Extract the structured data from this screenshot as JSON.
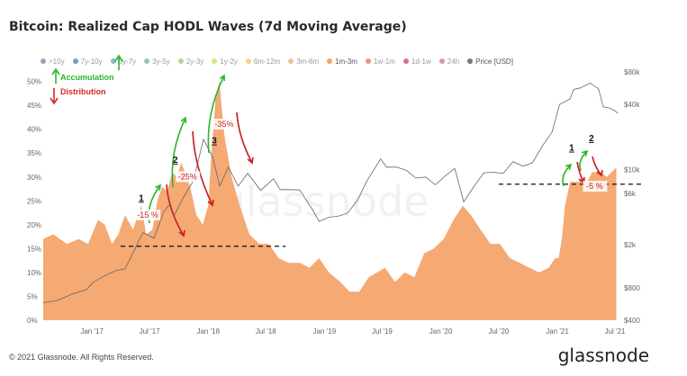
{
  "title": "Bitcoin: Realized Cap HODL Waves (7d Moving Average)",
  "footer": "© 2021 Glassnode. All Rights Reserved.",
  "brand": "glassnode",
  "watermark": "glassnode",
  "legend": [
    {
      "label": ">10y",
      "color": "#6b7a99",
      "active": false
    },
    {
      "label": "7y-10y",
      "color": "#3b6fb6",
      "active": false
    },
    {
      "label": "5y-7y",
      "color": "#4da0b5",
      "active": false
    },
    {
      "label": "3y-5y",
      "color": "#5bb98c",
      "active": false
    },
    {
      "label": "2y-3y",
      "color": "#93c95a",
      "active": false
    },
    {
      "label": "1y-2y",
      "color": "#d7d34a",
      "active": false
    },
    {
      "label": "6m-12m",
      "color": "#eac45a",
      "active": false
    },
    {
      "label": "3m-6m",
      "color": "#eaa95c",
      "active": false
    },
    {
      "label": "1m-3m",
      "color": "#f4a46b",
      "active": true
    },
    {
      "label": "1w-1m",
      "color": "#e06a4e",
      "active": false
    },
    {
      "label": "1d-1w",
      "color": "#c23b4a",
      "active": false
    },
    {
      "label": "24h",
      "color": "#d06a6a",
      "active": false
    },
    {
      "label": "Price [USD]",
      "color": "#777777",
      "active": true
    }
  ],
  "annotations": {
    "accumulation": "Accumulation",
    "distribution": "Distribution",
    "labels": [
      {
        "text": "1",
        "x": "2017-06-05",
        "y": 25
      },
      {
        "text": "2",
        "x": "2017-09-20",
        "y": 33
      },
      {
        "text": "3",
        "x": "2018-01-20",
        "y": 37
      },
      {
        "text": "1",
        "x": "2021-02-15",
        "y": 35.5
      },
      {
        "text": "2",
        "x": "2021-04-18",
        "y": 37.5
      }
    ],
    "pct": [
      {
        "text": "-15 %",
        "x": "2017-06-25",
        "y": 21.5
      },
      {
        "text": "-25%",
        "x": "2017-10-28",
        "y": 29.5
      },
      {
        "text": "-35%",
        "x": "2018-02-20",
        "y": 40.5
      },
      {
        "text": "-5 %",
        "x": "2021-04-28",
        "y": 27.5
      }
    ]
  },
  "chart_data": {
    "type": "area",
    "title": "Bitcoin: Realized Cap HODL Waves (7d Moving Average)",
    "x_ticks": [
      "Jan '17",
      "Jul '17",
      "Jan '18",
      "Jul '18",
      "Jan '19",
      "Jul '19",
      "Jan '20",
      "Jul '20",
      "Jan '21",
      "Jul '21"
    ],
    "x_tick_dates": [
      "2017-01-01",
      "2017-07-01",
      "2018-01-01",
      "2018-07-01",
      "2019-01-01",
      "2019-07-01",
      "2020-01-01",
      "2020-07-01",
      "2021-01-01",
      "2021-07-01"
    ],
    "x_range": [
      "2016-08-01",
      "2021-07-15"
    ],
    "y_left_ticks": [
      "0%",
      "5%",
      "10%",
      "15%",
      "20%",
      "25%",
      "30%",
      "35%",
      "40%",
      "45%",
      "50%"
    ],
    "y_left_range": [
      0,
      52
    ],
    "y_right_ticks": [
      "$400",
      "$800",
      "$2k",
      "$6k",
      "$10k",
      "$40k",
      "$80k"
    ],
    "y_right_tick_values": [
      400,
      800,
      2000,
      6000,
      10000,
      40000,
      80000
    ],
    "y_right_range": [
      400,
      80000
    ],
    "y_right_scale": "log",
    "series": [
      {
        "name": "1m-3m",
        "color": "#f4a46b",
        "x": [
          "2016-08-01",
          "2016-09-01",
          "2016-10-15",
          "2016-11-20",
          "2016-12-20",
          "2017-01-20",
          "2017-02-10",
          "2017-03-05",
          "2017-03-25",
          "2017-04-15",
          "2017-05-10",
          "2017-05-20",
          "2017-06-05",
          "2017-06-20",
          "2017-07-10",
          "2017-07-25",
          "2017-08-10",
          "2017-08-25",
          "2017-09-10",
          "2017-09-25",
          "2017-10-08",
          "2017-10-20",
          "2017-11-05",
          "2017-11-25",
          "2017-12-15",
          "2018-01-01",
          "2018-01-10",
          "2018-01-25",
          "2018-02-05",
          "2018-02-20",
          "2018-03-15",
          "2018-04-10",
          "2018-05-10",
          "2018-06-10",
          "2018-07-10",
          "2018-08-10",
          "2018-09-10",
          "2018-10-15",
          "2018-11-15",
          "2018-12-15",
          "2019-01-15",
          "2019-02-20",
          "2019-03-20",
          "2019-04-20",
          "2019-05-20",
          "2019-06-15",
          "2019-07-10",
          "2019-08-10",
          "2019-09-10",
          "2019-10-10",
          "2019-11-10",
          "2019-12-10",
          "2020-01-10",
          "2020-02-10",
          "2020-03-10",
          "2020-04-05",
          "2020-05-05",
          "2020-06-05",
          "2020-07-05",
          "2020-08-05",
          "2020-09-05",
          "2020-10-05",
          "2020-11-05",
          "2020-12-05",
          "2020-12-25",
          "2021-01-05",
          "2021-01-15",
          "2021-01-25",
          "2021-02-10",
          "2021-02-25",
          "2021-03-10",
          "2021-03-20",
          "2021-04-05",
          "2021-04-20",
          "2021-05-05",
          "2021-05-20",
          "2021-06-05",
          "2021-06-20",
          "2021-07-05"
        ],
        "values": [
          17,
          18,
          16,
          17,
          16,
          21,
          20,
          16,
          18,
          22,
          19,
          21,
          24,
          18,
          19,
          25,
          28,
          27,
          31,
          30,
          33,
          31,
          28,
          22,
          20,
          24,
          34,
          47,
          50,
          39,
          30,
          24,
          18,
          16,
          16,
          13,
          12,
          12,
          11,
          13,
          10,
          8,
          6,
          6,
          9,
          10,
          11,
          8,
          10,
          9,
          14,
          15,
          17,
          21,
          24,
          22,
          19,
          16,
          16,
          13,
          12,
          11,
          10,
          11,
          13,
          13,
          17,
          24,
          29,
          29,
          29,
          30,
          29,
          31,
          31,
          31,
          30,
          31,
          32
        ]
      },
      {
        "name": "Price [USD]",
        "color": "#666666",
        "x": [
          "2016-08-01",
          "2016-09-15",
          "2016-11-01",
          "2016-12-15",
          "2017-01-05",
          "2017-02-15",
          "2017-03-15",
          "2017-04-15",
          "2017-05-15",
          "2017-06-10",
          "2017-07-15",
          "2017-08-15",
          "2017-09-01",
          "2017-09-15",
          "2017-10-15",
          "2017-11-15",
          "2017-12-17",
          "2018-01-15",
          "2018-02-06",
          "2018-03-05",
          "2018-04-05",
          "2018-05-05",
          "2018-06-15",
          "2018-07-25",
          "2018-08-15",
          "2018-09-15",
          "2018-10-15",
          "2018-11-25",
          "2018-12-15",
          "2019-01-15",
          "2019-02-15",
          "2019-03-15",
          "2019-04-15",
          "2019-05-15",
          "2019-06-26",
          "2019-07-15",
          "2019-08-15",
          "2019-09-15",
          "2019-10-15",
          "2019-11-15",
          "2019-12-15",
          "2020-01-15",
          "2020-02-14",
          "2020-03-13",
          "2020-04-15",
          "2020-05-15",
          "2020-06-15",
          "2020-07-15",
          "2020-08-15",
          "2020-09-15",
          "2020-10-15",
          "2020-11-15",
          "2020-12-15",
          "2021-01-08",
          "2021-02-10",
          "2021-02-21",
          "2021-03-15",
          "2021-04-14",
          "2021-05-10",
          "2021-05-25",
          "2021-06-15",
          "2021-07-01",
          "2021-07-10"
        ],
        "values": [
          580,
          610,
          700,
          770,
          900,
          1050,
          1150,
          1200,
          1800,
          2600,
          2300,
          4100,
          4700,
          3700,
          5500,
          7800,
          19000,
          13000,
          7000,
          10500,
          7000,
          9200,
          6400,
          8200,
          6500,
          6500,
          6450,
          4200,
          3300,
          3600,
          3700,
          3950,
          5200,
          7900,
          12500,
          10500,
          10500,
          9800,
          8300,
          8500,
          7200,
          8700,
          10200,
          5000,
          7000,
          9300,
          9400,
          9200,
          11800,
          10700,
          11500,
          16500,
          22000,
          40000,
          45000,
          55000,
          57000,
          63000,
          56000,
          38000,
          37000,
          35000,
          33000
        ]
      }
    ],
    "reference_lines": [
      {
        "y": 15.5,
        "x_start": "2017-04-01",
        "x_end": "2018-09-01",
        "style": "dashed"
      },
      {
        "y": 28.5,
        "x_start": "2020-07-01",
        "x_end": "2021-10-01",
        "style": "dashed"
      }
    ],
    "legend_position": "top",
    "grid": false
  }
}
